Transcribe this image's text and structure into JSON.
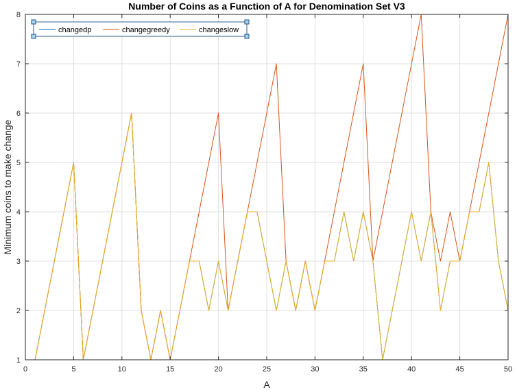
{
  "chart_data": {
    "type": "line",
    "title": "Number of Coins as a Function of A for Denomination Set V3",
    "xlabel": "A",
    "ylabel": "Minimum coins to make change",
    "xlim": [
      0,
      50
    ],
    "ylim": [
      1,
      8
    ],
    "xticks": [
      0,
      5,
      10,
      15,
      20,
      25,
      30,
      35,
      40,
      45,
      50
    ],
    "yticks": [
      1,
      2,
      3,
      4,
      5,
      6,
      7,
      8
    ],
    "grid": true,
    "legend_position": "top-left",
    "x": [
      1,
      2,
      3,
      4,
      5,
      6,
      7,
      8,
      9,
      10,
      11,
      12,
      13,
      14,
      15,
      16,
      17,
      18,
      19,
      20,
      21,
      22,
      23,
      24,
      25,
      26,
      27,
      28,
      29,
      30,
      31,
      32,
      33,
      34,
      35,
      36,
      37,
      38,
      39,
      40,
      41,
      42,
      43,
      44,
      45,
      46,
      47,
      48,
      49,
      50
    ],
    "series": [
      {
        "name": "changedp",
        "color": "#0072BD",
        "values": [
          1,
          2,
          3,
          4,
          5,
          1,
          2,
          3,
          4,
          5,
          6,
          2,
          1,
          2,
          1,
          2,
          3,
          3,
          2,
          3,
          2,
          3,
          4,
          4,
          3,
          2,
          3,
          2,
          3,
          2,
          3,
          3,
          4,
          3,
          4,
          3,
          1,
          2,
          3,
          4,
          3,
          4,
          2,
          3,
          3,
          4,
          4,
          5,
          3,
          2
        ]
      },
      {
        "name": "changegreedy",
        "color": "#D95319",
        "values": [
          1,
          2,
          3,
          4,
          5,
          1,
          2,
          3,
          4,
          5,
          6,
          2,
          1,
          2,
          1,
          2,
          3,
          4,
          5,
          6,
          2,
          3,
          4,
          5,
          6,
          7,
          3,
          2,
          3,
          2,
          3,
          4,
          5,
          6,
          7,
          3,
          4,
          5,
          6,
          7,
          8,
          4,
          3,
          4,
          3,
          4,
          5,
          6,
          7,
          8
        ]
      },
      {
        "name": "changeslow",
        "color": "#EDB120",
        "values": [
          1,
          2,
          3,
          4,
          5,
          1,
          2,
          3,
          4,
          5,
          6,
          2,
          1,
          2,
          1,
          2,
          3,
          3,
          2,
          3,
          2,
          3,
          4,
          4,
          3,
          2,
          3,
          2,
          3,
          2,
          3,
          3,
          4,
          3,
          4,
          3,
          1,
          2,
          3,
          4,
          3,
          4,
          2,
          3,
          3,
          4,
          4,
          5,
          3,
          2
        ]
      }
    ]
  }
}
